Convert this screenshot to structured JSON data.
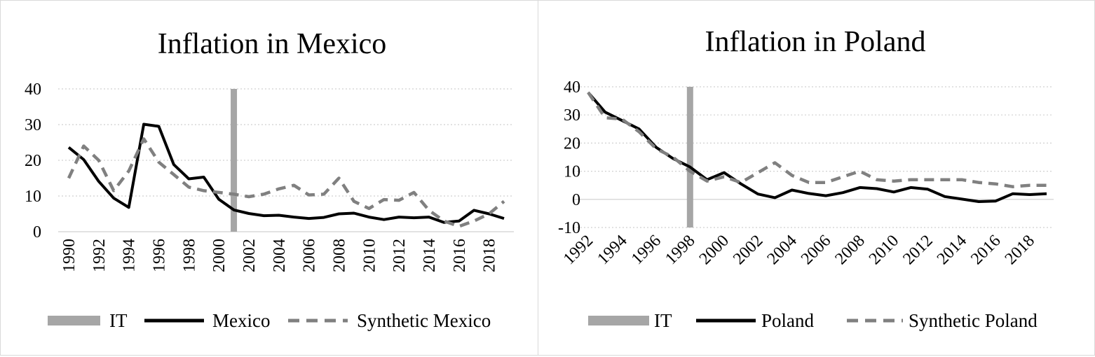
{
  "chart_data": [
    {
      "type": "line",
      "title": "Inflation in Mexico",
      "xlabel": "",
      "ylabel": "",
      "ylim": [
        0,
        40
      ],
      "yticks": [
        0,
        10,
        20,
        30,
        40
      ],
      "x": [
        1990,
        1991,
        1992,
        1993,
        1994,
        1995,
        1996,
        1997,
        1998,
        1999,
        2000,
        2001,
        2002,
        2003,
        2004,
        2005,
        2006,
        2007,
        2008,
        2009,
        2010,
        2011,
        2012,
        2013,
        2014,
        2015,
        2016,
        2017,
        2018,
        2019
      ],
      "xtick_labels": [
        "1990",
        "1992",
        "1994",
        "1996",
        "1998",
        "2000",
        "2002",
        "2004",
        "2006",
        "2008",
        "2010",
        "2012",
        "2014",
        "2016",
        "2018"
      ],
      "series": [
        {
          "name": "Mexico",
          "style": "solid",
          "color": "#000000",
          "values": [
            23.6,
            20.2,
            14.1,
            9.4,
            6.8,
            30.1,
            29.5,
            18.8,
            14.8,
            15.3,
            9.1,
            6.1,
            5.1,
            4.5,
            4.6,
            4.1,
            3.7,
            4.0,
            5.0,
            5.2,
            4.1,
            3.4,
            4.1,
            3.9,
            4.1,
            2.6,
            3.0,
            6.0,
            5.0,
            3.7
          ]
        },
        {
          "name": "Synthetic Mexico",
          "style": "dashed",
          "color": "#808080",
          "values": [
            15.0,
            24.0,
            20.0,
            11.5,
            17.0,
            26.0,
            19.5,
            16.0,
            12.5,
            11.5,
            11.0,
            10.5,
            9.8,
            10.5,
            12.0,
            13.0,
            10.3,
            10.5,
            15.0,
            8.5,
            6.5,
            9.0,
            8.8,
            11.0,
            6.0,
            3.0,
            1.5,
            3.0,
            5.0,
            8.5
          ]
        }
      ],
      "intervention": {
        "label": "IT",
        "year": 2001,
        "color": "#a6a6a6"
      },
      "legend": [
        "IT",
        "Mexico",
        "Synthetic Mexico"
      ],
      "legend_position": "bottom",
      "grid": true
    },
    {
      "type": "line",
      "title": "Inflation in Poland",
      "xlabel": "",
      "ylabel": "",
      "ylim": [
        -10,
        40
      ],
      "yticks": [
        -10,
        0,
        10,
        20,
        30,
        40
      ],
      "x": [
        1992,
        1993,
        1994,
        1995,
        1996,
        1997,
        1998,
        1999,
        2000,
        2001,
        2002,
        2003,
        2004,
        2005,
        2006,
        2007,
        2008,
        2009,
        2010,
        2011,
        2012,
        2013,
        2014,
        2015,
        2016,
        2017,
        2018,
        2019
      ],
      "xtick_labels": [
        "1992",
        "1994",
        "1996",
        "1998",
        "2000",
        "2002",
        "2004",
        "2006",
        "2008",
        "2010",
        "2012",
        "2014",
        "2016",
        "2018"
      ],
      "series": [
        {
          "name": "Poland",
          "style": "solid",
          "color": "#000000",
          "values": [
            38.0,
            31.0,
            28.0,
            25.0,
            18.5,
            14.5,
            11.5,
            7.0,
            9.5,
            5.5,
            1.9,
            0.6,
            3.3,
            2.1,
            1.3,
            2.4,
            4.2,
            3.8,
            2.6,
            4.2,
            3.6,
            1.0,
            0.1,
            -0.8,
            -0.6,
            2.0,
            1.7,
            2.0
          ]
        },
        {
          "name": "Synthetic Poland",
          "style": "dashed",
          "color": "#808080",
          "values": [
            38.0,
            29.0,
            28.5,
            24.0,
            18.0,
            15.0,
            10.0,
            6.5,
            8.0,
            6.0,
            9.5,
            13.0,
            8.5,
            6.0,
            6.0,
            8.0,
            10.0,
            7.0,
            6.5,
            7.0,
            7.0,
            7.0,
            7.0,
            6.0,
            5.5,
            4.5,
            5.0,
            5.0
          ]
        }
      ],
      "intervention": {
        "label": "IT",
        "year": 1998,
        "color": "#a6a6a6"
      },
      "legend": [
        "IT",
        "Poland",
        "Synthetic Poland"
      ],
      "legend_position": "bottom",
      "grid": true
    }
  ]
}
